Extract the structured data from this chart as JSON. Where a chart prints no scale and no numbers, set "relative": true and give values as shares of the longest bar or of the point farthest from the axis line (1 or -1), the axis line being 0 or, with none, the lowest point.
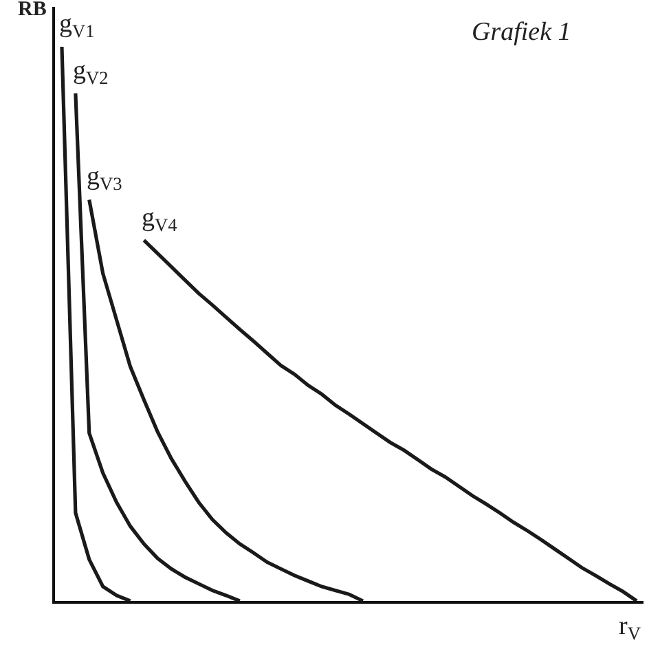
{
  "chart_data": {
    "type": "line",
    "title": "Grafiek 1",
    "xlabel": "r$_{V}$",
    "ylabel": "RB",
    "relative": true,
    "grid": false,
    "legend": false,
    "marker": "none",
    "line_style": "solid",
    "categories": [
      null,
      null,
      null,
      null,
      null,
      null,
      null,
      null,
      null,
      null,
      null,
      null,
      null,
      null,
      null,
      null,
      null,
      null,
      null,
      null,
      null,
      null,
      null,
      null,
      null,
      null,
      null,
      null,
      null,
      null,
      null,
      null,
      null,
      null,
      null,
      null,
      null,
      null,
      null,
      null,
      null,
      null,
      null
    ],
    "series": [
      {
        "name": "g$_{V1}$",
        "color": "#1a1a1a",
        "values": [
          1,
          0.159,
          0.075,
          0.026,
          0.01,
          0,
          null,
          null,
          null,
          null,
          null,
          null,
          null,
          null,
          null,
          null,
          null,
          null,
          null,
          null,
          null,
          null,
          null,
          null,
          null,
          null,
          null,
          null,
          null,
          null,
          null,
          null,
          null,
          null,
          null,
          null,
          null,
          null,
          null,
          null,
          null,
          null,
          null
        ]
      },
      {
        "name": "g$_{V2}$",
        "color": "#1a1a1a",
        "values": [
          null,
          0.916,
          0.303,
          0.231,
          0.178,
          0.135,
          0.103,
          0.077,
          0.058,
          0.043,
          0.031,
          0.019,
          0.01,
          0,
          null,
          null,
          null,
          null,
          null,
          null,
          null,
          null,
          null,
          null,
          null,
          null,
          null,
          null,
          null,
          null,
          null,
          null,
          null,
          null,
          null,
          null,
          null,
          null,
          null,
          null,
          null,
          null,
          null
        ]
      },
      {
        "name": "g$_{V3}$",
        "color": "#1a1a1a",
        "values": [
          null,
          null,
          0.724,
          0.591,
          0.507,
          0.423,
          0.363,
          0.305,
          0.257,
          0.216,
          0.178,
          0.147,
          0.123,
          0.103,
          0.087,
          0.07,
          0.058,
          0.046,
          0.036,
          0.026,
          0.019,
          0.012,
          0,
          null,
          null,
          null,
          null,
          null,
          null,
          null,
          null,
          null,
          null,
          null,
          null,
          null,
          null,
          null,
          null,
          null,
          null,
          null,
          null
        ]
      },
      {
        "name": "g$_{V4}$",
        "color": "#1a1a1a",
        "values": [
          null,
          null,
          null,
          null,
          null,
          null,
          0.651,
          0.627,
          0.603,
          0.579,
          0.555,
          0.534,
          0.512,
          0.49,
          0.469,
          0.447,
          0.425,
          0.409,
          0.389,
          0.373,
          0.353,
          0.337,
          0.32,
          0.303,
          0.286,
          0.272,
          0.255,
          0.238,
          0.224,
          0.207,
          0.19,
          0.175,
          0.159,
          0.142,
          0.127,
          0.111,
          0.094,
          0.077,
          0.06,
          0.046,
          0.031,
          0.017,
          0
        ]
      }
    ]
  }
}
